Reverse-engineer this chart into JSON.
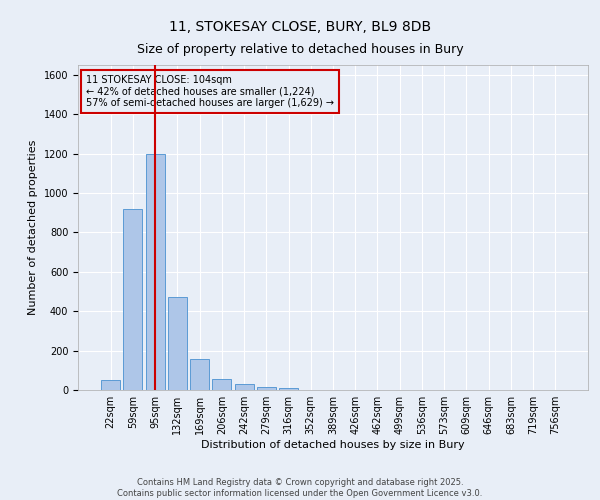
{
  "title1": "11, STOKESAY CLOSE, BURY, BL9 8DB",
  "title2": "Size of property relative to detached houses in Bury",
  "xlabel": "Distribution of detached houses by size in Bury",
  "ylabel": "Number of detached properties",
  "bar_labels": [
    "22sqm",
    "59sqm",
    "95sqm",
    "132sqm",
    "169sqm",
    "206sqm",
    "242sqm",
    "279sqm",
    "316sqm",
    "352sqm",
    "389sqm",
    "426sqm",
    "462sqm",
    "499sqm",
    "536sqm",
    "573sqm",
    "609sqm",
    "646sqm",
    "683sqm",
    "719sqm",
    "756sqm"
  ],
  "bar_values": [
    50,
    920,
    1200,
    470,
    155,
    55,
    30,
    15,
    10,
    0,
    0,
    0,
    0,
    0,
    0,
    0,
    0,
    0,
    0,
    0,
    0
  ],
  "bar_color": "#aec6e8",
  "bar_edgecolor": "#5b9bd5",
  "vline_x": 2,
  "vline_color": "#cc0000",
  "ylim": [
    0,
    1650
  ],
  "yticks": [
    0,
    200,
    400,
    600,
    800,
    1000,
    1200,
    1400,
    1600
  ],
  "annotation_title": "11 STOKESAY CLOSE: 104sqm",
  "annotation_line1": "← 42% of detached houses are smaller (1,224)",
  "annotation_line2": "57% of semi-detached houses are larger (1,629) →",
  "annotation_box_color": "#cc0000",
  "footer1": "Contains HM Land Registry data © Crown copyright and database right 2025.",
  "footer2": "Contains public sector information licensed under the Open Government Licence v3.0.",
  "bg_color": "#e8eef7",
  "grid_color": "#ffffff",
  "title_fontsize": 10,
  "title2_fontsize": 9,
  "axis_label_fontsize": 8,
  "tick_fontsize": 7,
  "ann_fontsize": 7,
  "footer_fontsize": 6
}
